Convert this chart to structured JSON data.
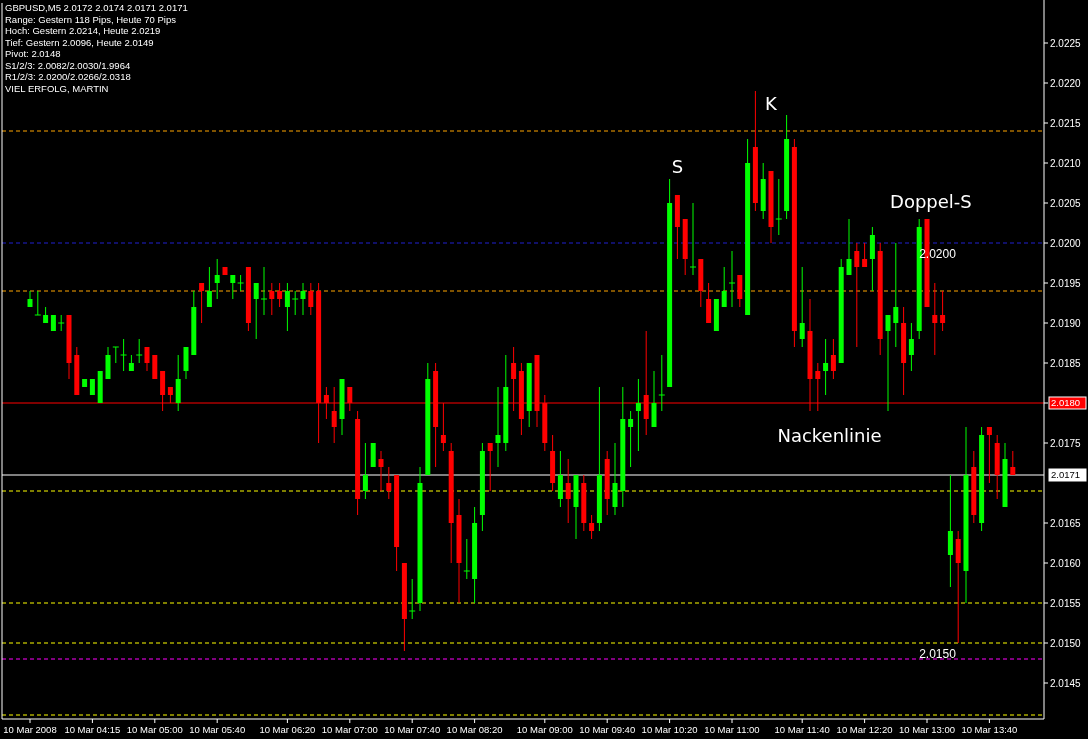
{
  "chart_data": {
    "type": "candlestick",
    "title": "GBPUSD,M5  2.0172 2.0174 2.0171 2.0171",
    "annotations": [
      "Range: Gestern 118 Pips, Heute 70 Pips",
      "Hoch: Gestern 2.0214, Heute 2.0219",
      "Tief:  Gestern 2.0096, Heute 2.0149",
      "Pivot: 2.0148",
      "S1/2/3: 2.0082/2.0030/1.9964",
      "R1/2/3: 2.0200/2.0266/2.0318",
      "VIEL ERFOLG, MARTIN",
      "S",
      "K",
      "Doppel-S",
      "Nackenlinie"
    ],
    "categories": [
      "10 Mar 2008",
      null,
      null,
      null,
      null,
      null,
      null,
      null,
      "10 Mar 04:15",
      null,
      null,
      null,
      null,
      null,
      null,
      null,
      "10 Mar 05:00",
      null,
      null,
      null,
      null,
      null,
      null,
      null,
      "10 Mar 05:40",
      null,
      null,
      null,
      null,
      null,
      null,
      null,
      null,
      "10 Mar 06:20",
      null,
      null,
      null,
      null,
      null,
      null,
      null,
      "10 Mar 07:00",
      null,
      null,
      null,
      null,
      null,
      null,
      null,
      "10 Mar 07:40",
      null,
      null,
      null,
      null,
      null,
      null,
      null,
      "10 Mar 08:20",
      null,
      null,
      null,
      null,
      null,
      null,
      null,
      null,
      "10 Mar 09:00",
      null,
      null,
      null,
      null,
      null,
      null,
      null,
      "10 Mar 09:40",
      null,
      null,
      null,
      null,
      null,
      null,
      null,
      "10 Mar 10:20",
      null,
      null,
      null,
      null,
      null,
      null,
      null,
      "10 Mar 11:00",
      null,
      null,
      null,
      null,
      null,
      null,
      null,
      null,
      "10 Mar 11:40",
      null,
      null,
      null,
      null,
      null,
      null,
      null,
      "10 Mar 12:20",
      null,
      null,
      null,
      null,
      null,
      null,
      null,
      "10 Mar 13:00",
      null,
      null,
      null,
      null,
      null,
      null,
      null,
      "10 Mar 13:40",
      null,
      null,
      null
    ],
    "ohlc": [
      [
        2.0192,
        2.0194,
        2.0192,
        2.0193
      ],
      [
        2.0191,
        2.0194,
        2.0191,
        2.0191
      ],
      [
        2.019,
        2.0192,
        2.019,
        2.0191
      ],
      [
        2.0189,
        2.0191,
        2.0189,
        2.0191
      ],
      [
        2.019,
        2.0191,
        2.0189,
        2.019
      ],
      [
        2.0191,
        2.0191,
        2.0183,
        2.0185
      ],
      [
        2.0186,
        2.0187,
        2.0181,
        2.0181
      ],
      [
        2.0182,
        2.0183,
        2.0182,
        2.0183
      ],
      [
        2.0181,
        2.0183,
        2.0181,
        2.0183
      ],
      [
        2.018,
        2.0184,
        2.018,
        2.0184
      ],
      [
        2.0183,
        2.0187,
        2.0183,
        2.0186
      ],
      [
        2.0187,
        2.0187,
        2.0185,
        2.0187
      ],
      [
        2.0186,
        2.0188,
        2.0184,
        2.0186
      ],
      [
        2.0184,
        2.0186,
        2.0184,
        2.0185
      ],
      [
        2.0186,
        2.0188,
        2.0185,
        2.0186
      ],
      [
        2.0187,
        2.0187,
        2.0184,
        2.0185
      ],
      [
        2.0186,
        2.0186,
        2.0183,
        2.0183
      ],
      [
        2.0184,
        2.0184,
        2.0179,
        2.0181
      ],
      [
        2.0182,
        2.0182,
        2.018,
        2.0181
      ],
      [
        2.018,
        2.0186,
        2.0179,
        2.0183
      ],
      [
        2.0184,
        2.0187,
        2.0183,
        2.0187
      ],
      [
        2.0186,
        2.0194,
        2.0186,
        2.0192
      ],
      [
        2.0195,
        2.0195,
        2.019,
        2.0194
      ],
      [
        2.0192,
        2.0197,
        2.0192,
        2.0194
      ],
      [
        2.0195,
        2.0198,
        2.0193,
        2.0196
      ],
      [
        2.0197,
        2.0197,
        2.0196,
        2.0196
      ],
      [
        2.0195,
        2.0196,
        2.0193,
        2.0196
      ],
      [
        2.0195,
        2.0196,
        2.0194,
        2.0195
      ],
      [
        2.0197,
        2.0197,
        2.0189,
        2.019
      ],
      [
        2.0193,
        2.0195,
        2.0188,
        2.0195
      ],
      [
        2.0193,
        2.0197,
        2.0191,
        2.0193
      ],
      [
        2.0194,
        2.0195,
        2.0191,
        2.0193
      ],
      [
        2.0194,
        2.0195,
        2.0192,
        2.0193
      ],
      [
        2.0192,
        2.0195,
        2.0189,
        2.0194
      ],
      [
        2.0193,
        2.0194,
        2.0191,
        2.0193
      ],
      [
        2.0193,
        2.0195,
        2.0191,
        2.0194
      ],
      [
        2.0194,
        2.0195,
        2.0191,
        2.0192
      ],
      [
        2.0194,
        2.0195,
        2.0175,
        2.018
      ],
      [
        2.0181,
        2.0182,
        2.0178,
        2.018
      ],
      [
        2.0179,
        2.0182,
        2.0175,
        2.0177
      ],
      [
        2.0178,
        2.0183,
        2.0176,
        2.0183
      ],
      [
        2.0182,
        2.0182,
        2.0179,
        2.018
      ],
      [
        2.0178,
        2.0179,
        2.0166,
        2.0168
      ],
      [
        2.0169,
        2.0175,
        2.0168,
        2.0171
      ],
      [
        2.0172,
        2.0175,
        2.0172,
        2.0175
      ],
      [
        2.0173,
        2.0174,
        2.0169,
        2.0172
      ],
      [
        2.017,
        2.0172,
        2.0168,
        2.0169
      ],
      [
        2.0171,
        2.0171,
        2.0159,
        2.0162
      ],
      [
        2.016,
        2.016,
        2.0149,
        2.0153
      ],
      [
        2.0154,
        2.0158,
        2.0153,
        2.0154
      ],
      [
        2.0155,
        2.0172,
        2.0154,
        2.017
      ],
      [
        2.0171,
        2.0185,
        2.0171,
        2.0183
      ],
      [
        2.0184,
        2.0185,
        2.0172,
        2.0177
      ],
      [
        2.0176,
        2.018,
        2.0174,
        2.0175
      ],
      [
        2.0174,
        2.0175,
        2.016,
        2.0165
      ],
      [
        2.0166,
        2.0168,
        2.0155,
        2.016
      ],
      [
        2.0159,
        2.0163,
        2.0158,
        2.0159
      ],
      [
        2.0158,
        2.0167,
        2.0155,
        2.0165
      ],
      [
        2.0166,
        2.0175,
        2.0164,
        2.0174
      ],
      [
        2.0175,
        2.0175,
        2.0169,
        2.0174
      ],
      [
        2.0175,
        2.0182,
        2.0172,
        2.0176
      ],
      [
        2.0175,
        2.0186,
        2.0174,
        2.0182
      ],
      [
        2.0185,
        2.0187,
        2.0179,
        2.0183
      ],
      [
        2.0184,
        2.0185,
        2.0176,
        2.0178
      ],
      [
        2.0179,
        2.0185,
        2.0177,
        2.0185
      ],
      [
        2.0186,
        2.0186,
        2.0177,
        2.0179
      ],
      [
        2.018,
        2.0181,
        2.0174,
        2.0175
      ],
      [
        2.0174,
        2.0176,
        2.0169,
        2.017
      ],
      [
        2.0168,
        2.0174,
        2.0167,
        2.0171
      ],
      [
        2.017,
        2.0173,
        2.0165,
        2.0168
      ],
      [
        2.0167,
        2.0171,
        2.0163,
        2.0171
      ],
      [
        2.017,
        2.0171,
        2.0164,
        2.0165
      ],
      [
        2.0165,
        2.0166,
        2.0163,
        2.0164
      ],
      [
        2.0165,
        2.0182,
        2.0164,
        2.0171
      ],
      [
        2.0173,
        2.0174,
        2.0166,
        2.0168
      ],
      [
        2.0167,
        2.0175,
        2.0166,
        2.017
      ],
      [
        2.0169,
        2.0182,
        2.0167,
        2.0178
      ],
      [
        2.0177,
        2.0179,
        2.0172,
        2.0178
      ],
      [
        2.0179,
        2.0183,
        2.0174,
        2.018
      ],
      [
        2.0181,
        2.0189,
        2.0176,
        2.0178
      ],
      [
        2.0177,
        2.0184,
        2.0177,
        2.018
      ],
      [
        2.0181,
        2.0186,
        2.0179,
        2.0181
      ],
      [
        2.0182,
        2.0208,
        2.0182,
        2.0205
      ],
      [
        2.0206,
        2.0206,
        2.0198,
        2.0202
      ],
      [
        2.0203,
        2.0203,
        2.0196,
        2.0198
      ],
      [
        2.0197,
        2.0205,
        2.0196,
        2.0197
      ],
      [
        2.0198,
        2.0198,
        2.0192,
        2.0194
      ],
      [
        2.0193,
        2.0195,
        2.019,
        2.019
      ],
      [
        2.0189,
        2.0193,
        2.0189,
        2.0193
      ],
      [
        2.0192,
        2.0197,
        2.0192,
        2.0194
      ],
      [
        2.0195,
        2.0199,
        2.0192,
        2.0195
      ],
      [
        2.0196,
        2.0196,
        2.0192,
        2.0193
      ],
      [
        2.0191,
        2.0213,
        2.0191,
        2.021
      ],
      [
        2.0212,
        2.0219,
        2.0204,
        2.0205
      ],
      [
        2.0204,
        2.021,
        2.0203,
        2.0208
      ],
      [
        2.0209,
        2.0209,
        2.02,
        2.0202
      ],
      [
        2.0203,
        2.0208,
        2.0201,
        2.0203
      ],
      [
        2.0204,
        2.0216,
        2.0203,
        2.0213
      ],
      [
        2.0212,
        2.0213,
        2.0187,
        2.0189
      ],
      [
        2.0188,
        2.0197,
        2.0187,
        2.019
      ],
      [
        2.0189,
        2.0193,
        2.0179,
        2.0183
      ],
      [
        2.0184,
        2.0185,
        2.0179,
        2.0183
      ],
      [
        2.0184,
        2.0188,
        2.0181,
        2.0185
      ],
      [
        2.0186,
        2.0188,
        2.0183,
        2.0184
      ],
      [
        2.0185,
        2.0198,
        2.0185,
        2.0197
      ],
      [
        2.0196,
        2.0203,
        2.0196,
        2.0198
      ],
      [
        2.0199,
        2.02,
        2.0187,
        2.0197
      ],
      [
        2.0198,
        2.02,
        2.0197,
        2.0197
      ],
      [
        2.0198,
        2.0202,
        2.0194,
        2.0201
      ],
      [
        2.0199,
        2.02,
        2.0186,
        2.0188
      ],
      [
        2.0189,
        2.0191,
        2.0179,
        2.0191
      ],
      [
        2.019,
        2.02,
        2.0187,
        2.0192
      ],
      [
        2.019,
        2.0192,
        2.0181,
        2.0185
      ],
      [
        2.0186,
        2.019,
        2.0184,
        2.0188
      ],
      [
        2.0189,
        2.0203,
        2.0188,
        2.0202
      ],
      [
        2.0203,
        2.0203,
        2.0192,
        2.0192
      ],
      [
        2.0191,
        2.0195,
        2.0186,
        2.019
      ],
      [
        2.0191,
        2.0194,
        2.0189,
        2.019
      ],
      [
        2.0161,
        2.0171,
        2.0157,
        2.0164
      ],
      [
        2.0163,
        2.0164,
        2.015,
        2.016
      ],
      [
        2.0159,
        2.0177,
        2.0155,
        2.0171
      ],
      [
        2.0172,
        2.0174,
        2.0165,
        2.0166
      ],
      [
        2.0165,
        2.0177,
        2.0164,
        2.0176
      ],
      [
        2.0177,
        2.0177,
        2.017,
        2.0176
      ],
      [
        2.0175,
        2.0176,
        2.0168,
        2.0171
      ],
      [
        2.0167,
        2.0175,
        2.0167,
        2.0173
      ],
      [
        2.0172,
        2.0174,
        2.0171,
        2.0171
      ]
    ],
    "colors": [
      "#00ff00",
      "#00ff00",
      "#00ff00",
      "#00ff00",
      "#00ff00",
      "#ff0000",
      "#ff0000",
      "#00ff00",
      "#00ff00",
      "#00ff00",
      "#00ff00",
      "#00ff00",
      "#00ff00",
      "#00ff00",
      "#00ff00",
      "#ff0000",
      "#ff0000",
      "#ff0000",
      "#ff0000",
      "#00ff00",
      "#00ff00",
      "#00ff00",
      "#ff0000",
      "#00ff00",
      "#00ff00",
      "#ff0000",
      "#00ff00",
      "#00ff00",
      "#ff0000",
      "#00ff00",
      "#00ff00",
      "#ff0000",
      "#ff0000",
      "#00ff00",
      "#00ff00",
      "#00ff00",
      "#ff0000",
      "#ff0000",
      "#ff0000",
      "#ff0000",
      "#00ff00",
      "#ff0000",
      "#ff0000",
      "#00ff00",
      "#00ff00",
      "#ff0000",
      "#ff0000",
      "#ff0000",
      "#ff0000",
      "#00ff00",
      "#00ff00",
      "#00ff00",
      "#ff0000",
      "#ff0000",
      "#ff0000",
      "#ff0000",
      "#00ff00",
      "#00ff00",
      "#00ff00",
      "#ff0000",
      "#00ff00",
      "#00ff00",
      "#ff0000",
      "#ff0000",
      "#00ff00",
      "#ff0000",
      "#ff0000",
      "#ff0000",
      "#00ff00",
      "#ff0000",
      "#00ff00",
      "#ff0000",
      "#ff0000",
      "#00ff00",
      "#ff0000",
      "#00ff00",
      "#00ff00",
      "#00ff00",
      "#00ff00",
      "#ff0000",
      "#00ff00",
      "#00ff00",
      "#00ff00",
      "#ff0000",
      "#ff0000",
      "#00ff00",
      "#ff0000",
      "#ff0000",
      "#00ff00",
      "#00ff00",
      "#00ff00",
      "#ff0000",
      "#00ff00",
      "#ff0000",
      "#00ff00",
      "#ff0000",
      "#00ff00",
      "#00ff00",
      "#ff0000",
      "#00ff00",
      "#ff0000",
      "#ff0000",
      "#00ff00",
      "#ff0000",
      "#00ff00",
      "#00ff00",
      "#ff0000",
      "#ff0000",
      "#00ff00",
      "#ff0000",
      "#00ff00",
      "#00ff00",
      "#ff0000",
      "#00ff00",
      "#00ff00",
      "#ff0000",
      "#ff0000",
      "#ff0000",
      "#00ff00",
      "#ff0000",
      "#00ff00",
      "#ff0000",
      "#00ff00",
      "#ff0000",
      "#ff0000",
      "#00ff00",
      "#ff0000"
    ],
    "ylim": [
      2.01405,
      2.023
    ],
    "yticks": [
      2.0145,
      {
        "value": 2.015,
        "label": "2.0150"
      },
      2.0155,
      {
        "value": 2.016,
        "label": "2.0160"
      },
      2.0165,
      2.0175,
      {
        "value": 2.018,
        "label": null
      },
      2.0185,
      {
        "value": 2.019,
        "label": "2.0190"
      },
      2.0195,
      {
        "value": 2.02,
        "label": "2.0200"
      },
      2.0205,
      {
        "value": 2.021,
        "label": "2.0210"
      },
      2.0215,
      {
        "value": 2.022,
        "label": "2.0220"
      },
      2.0225
    ],
    "ref_lines": [
      {
        "axis": "y",
        "value": 2.0214,
        "color": "#ffa500",
        "line_style": "dashed"
      },
      {
        "axis": "y",
        "value": 2.02,
        "label": "2.0200",
        "color": "#2020d0",
        "line_style": "dashed"
      },
      {
        "axis": "y",
        "value": 2.0194,
        "color": "#ffa500",
        "line_style": "dashed"
      },
      {
        "axis": "y",
        "value": 2.018,
        "label": "2.0180",
        "color": "#ff0000",
        "line_style": "solid"
      },
      {
        "axis": "y",
        "value": 2.0171,
        "label": "2.0171",
        "color": "#ffffff",
        "line_style": "solid"
      },
      {
        "axis": "y",
        "value": 2.0169,
        "color": "#ffff00",
        "line_style": "dashed"
      },
      {
        "axis": "y",
        "value": 2.0155,
        "color": "#ffff00",
        "line_style": "dashed"
      },
      {
        "axis": "y",
        "value": 2.015,
        "label": "2.0150",
        "color": "#ffff00",
        "line_style": "dashed"
      },
      {
        "axis": "y",
        "value": 2.0148,
        "color": "#ff00ff",
        "line_style": "dashed"
      },
      {
        "axis": "y",
        "value": 2.0141,
        "color": "#ffff00",
        "line_style": "dashed"
      }
    ],
    "grid": false
  }
}
